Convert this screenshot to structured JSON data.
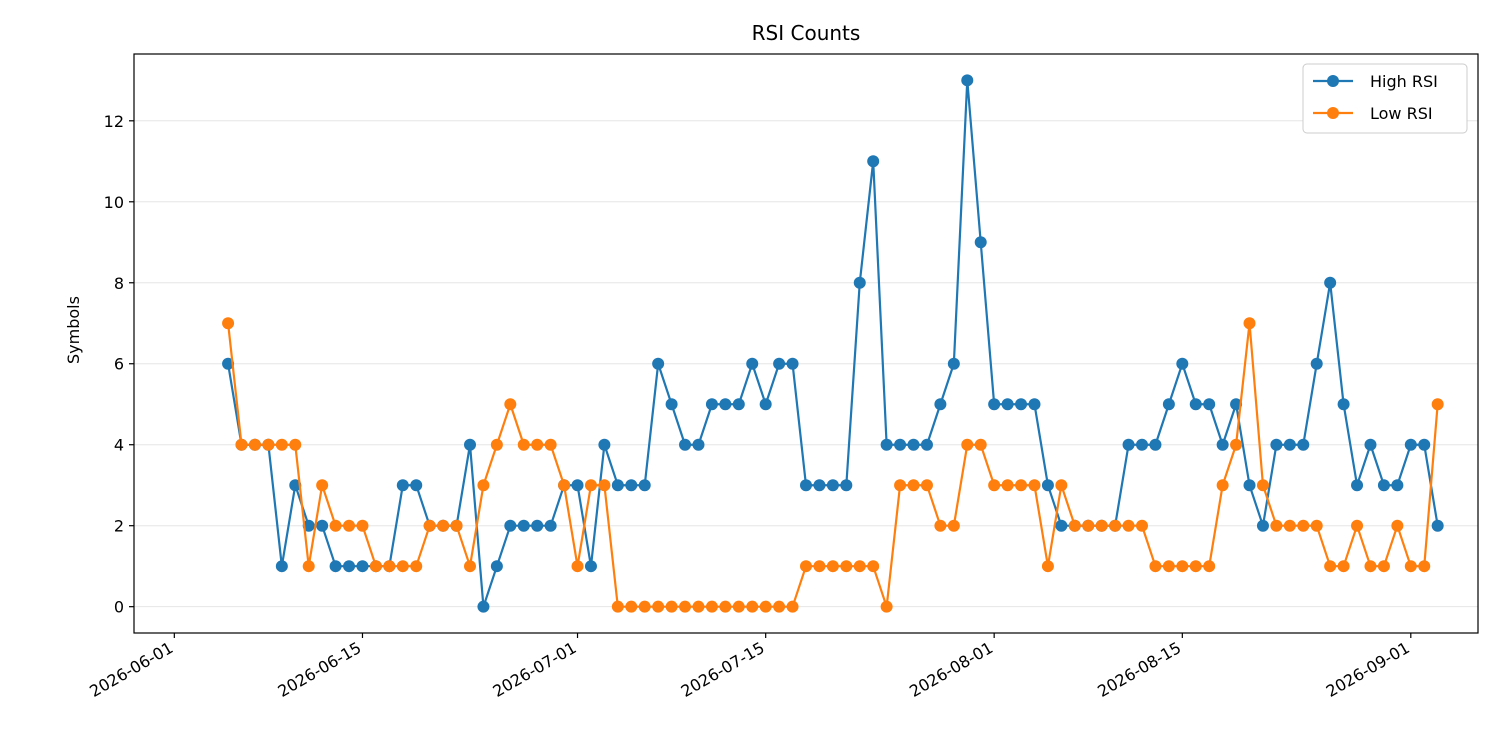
{
  "chart_data": {
    "type": "line",
    "title": "RSI Counts",
    "xlabel": "",
    "ylabel": "Symbols",
    "x_start": "2026-06-05",
    "x": [
      "2026-06-05",
      "2026-06-06",
      "2026-06-07",
      "2026-06-08",
      "2026-06-09",
      "2026-06-10",
      "2026-06-11",
      "2026-06-12",
      "2026-06-13",
      "2026-06-14",
      "2026-06-15",
      "2026-06-16",
      "2026-06-17",
      "2026-06-18",
      "2026-06-19",
      "2026-06-20",
      "2026-06-21",
      "2026-06-22",
      "2026-06-23",
      "2026-06-24",
      "2026-06-25",
      "2026-06-26",
      "2026-06-27",
      "2026-06-28",
      "2026-06-29",
      "2026-06-30",
      "2026-07-01",
      "2026-07-02",
      "2026-07-03",
      "2026-07-04",
      "2026-07-05",
      "2026-07-06",
      "2026-07-07",
      "2026-07-08",
      "2026-07-09",
      "2026-07-10",
      "2026-07-11",
      "2026-07-12",
      "2026-07-13",
      "2026-07-14",
      "2026-07-15",
      "2026-07-16",
      "2026-07-17",
      "2026-07-18",
      "2026-07-19",
      "2026-07-20",
      "2026-07-21",
      "2026-07-22",
      "2026-07-23",
      "2026-07-24",
      "2026-07-25",
      "2026-07-26",
      "2026-07-27",
      "2026-07-28",
      "2026-07-29",
      "2026-07-30",
      "2026-07-31",
      "2026-08-01",
      "2026-08-02",
      "2026-08-03",
      "2026-08-04",
      "2026-08-05",
      "2026-08-06",
      "2026-08-07",
      "2026-08-08",
      "2026-08-09",
      "2026-08-10",
      "2026-08-11",
      "2026-08-12",
      "2026-08-13",
      "2026-08-14",
      "2026-08-15",
      "2026-08-16",
      "2026-08-17",
      "2026-08-18",
      "2026-08-19",
      "2026-08-20",
      "2026-08-21",
      "2026-08-22",
      "2026-08-23",
      "2026-08-24",
      "2026-08-25",
      "2026-08-26",
      "2026-08-27",
      "2026-08-28",
      "2026-08-29",
      "2026-08-30",
      "2026-08-31",
      "2026-09-01",
      "2026-09-02",
      "2026-09-03"
    ],
    "series": [
      {
        "name": "High RSI",
        "color": "#1f77b4",
        "values": [
          6,
          4,
          4,
          4,
          1,
          3,
          2,
          2,
          1,
          1,
          1,
          1,
          1,
          3,
          3,
          2,
          2,
          2,
          4,
          0,
          1,
          2,
          2,
          2,
          2,
          3,
          3,
          1,
          4,
          3,
          3,
          3,
          6,
          5,
          4,
          4,
          5,
          5,
          5,
          6,
          5,
          6,
          6,
          3,
          3,
          3,
          3,
          8,
          11,
          4,
          4,
          4,
          4,
          5,
          6,
          13,
          9,
          5,
          5,
          5,
          5,
          3,
          2,
          2,
          2,
          2,
          2,
          4,
          4,
          4,
          5,
          6,
          5,
          5,
          4,
          5,
          3,
          2,
          4,
          4,
          4,
          6,
          8,
          5,
          3,
          4,
          3,
          3,
          4,
          4,
          2
        ]
      },
      {
        "name": "Low RSI",
        "color": "#ff7f0e",
        "values": [
          7,
          4,
          4,
          4,
          4,
          4,
          1,
          3,
          2,
          2,
          2,
          1,
          1,
          1,
          1,
          2,
          2,
          2,
          1,
          3,
          4,
          5,
          4,
          4,
          4,
          3,
          1,
          3,
          3,
          0,
          0,
          0,
          0,
          0,
          0,
          0,
          0,
          0,
          0,
          0,
          0,
          0,
          0,
          1,
          1,
          1,
          1,
          1,
          1,
          0,
          3,
          3,
          3,
          2,
          2,
          4,
          4,
          3,
          3,
          3,
          3,
          1,
          3,
          2,
          2,
          2,
          2,
          2,
          2,
          1,
          1,
          1,
          1,
          1,
          3,
          4,
          7,
          3,
          2,
          2,
          2,
          2,
          1,
          1,
          2,
          1,
          1,
          2,
          1,
          1,
          5
        ]
      }
    ],
    "ylim": [
      -0.65,
      13.65
    ],
    "yticks": [
      0,
      2,
      4,
      6,
      8,
      10,
      12
    ],
    "xticks": [
      "2026-06-01",
      "2026-06-15",
      "2026-07-01",
      "2026-07-15",
      "2026-08-01",
      "2026-08-15",
      "2026-09-01"
    ],
    "grid": "y",
    "legend": "top-right"
  }
}
